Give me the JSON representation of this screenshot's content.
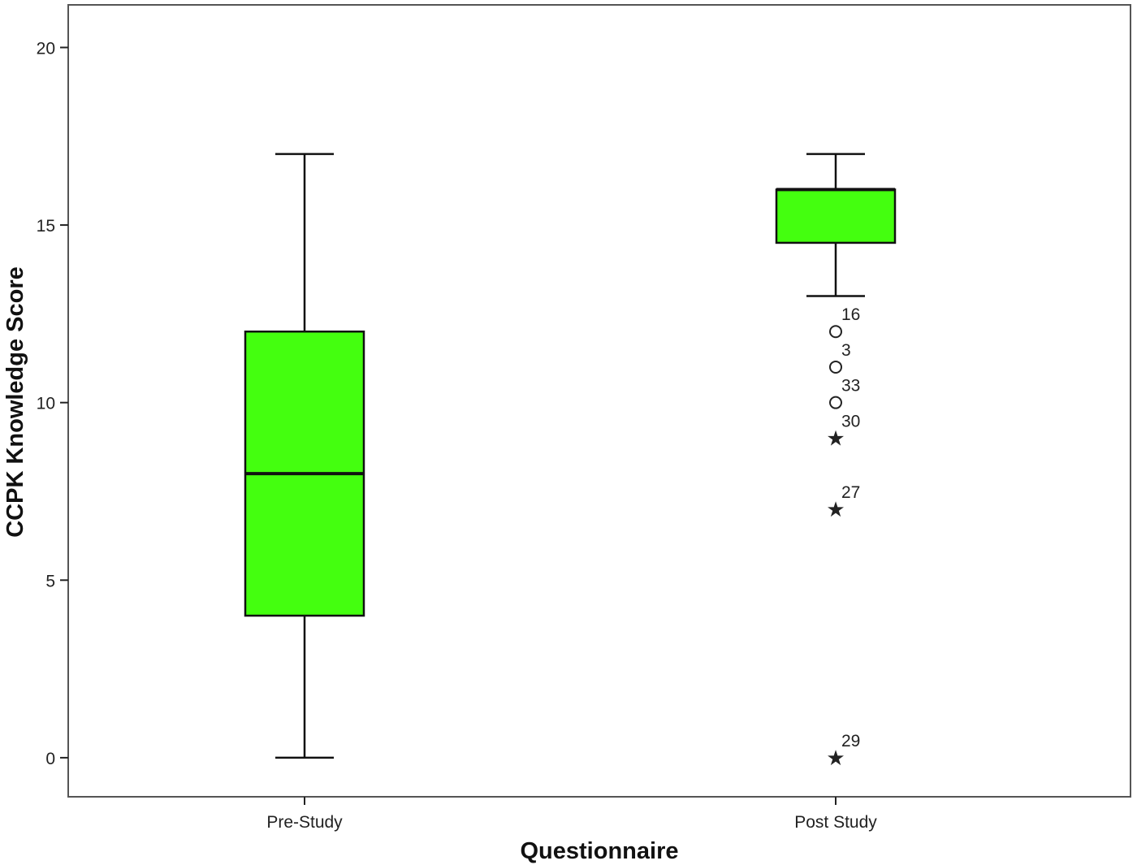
{
  "chart_data": {
    "type": "box",
    "xlabel": "Questionnaire",
    "ylabel": "CCPK Knowledge Score",
    "ylim": [
      -1.1,
      21.2
    ],
    "yticks": [
      0,
      5,
      10,
      15,
      20
    ],
    "grid": false,
    "box_fill": "#44ff0f",
    "line_color": "#111111",
    "categories": [
      "Pre-Study",
      "Post Study"
    ],
    "boxes": [
      {
        "category": "Pre-Study",
        "whisker_low": 0,
        "q1": 4,
        "median": 8,
        "q3": 12,
        "whisker_high": 17,
        "outliers": []
      },
      {
        "category": "Post Study",
        "whisker_low": 13,
        "q1": 14.5,
        "median": 16,
        "q3": 16,
        "whisker_high": 17,
        "outliers": [
          {
            "value": 12,
            "label": "16",
            "marker": "circle"
          },
          {
            "value": 11,
            "label": "3",
            "marker": "circle"
          },
          {
            "value": 10,
            "label": "33",
            "marker": "circle"
          },
          {
            "value": 9,
            "label": "30",
            "marker": "star"
          },
          {
            "value": 7,
            "label": "27",
            "marker": "star"
          },
          {
            "value": 0,
            "label": "29",
            "marker": "star"
          }
        ]
      }
    ]
  }
}
